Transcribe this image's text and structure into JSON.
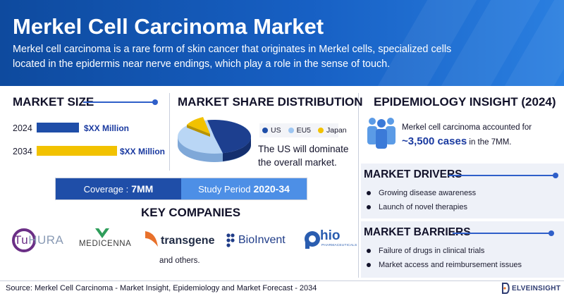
{
  "header": {
    "title": "Merkel Cell Carcinoma Market",
    "description": "Merkel cell carcinoma is a rare form of skin cancer that originates in Merkel cells, specialized cells located in the epidermis near nerve endings, which play a role in the sense of touch."
  },
  "market_size": {
    "title": "MARKET SIZE",
    "rows": [
      {
        "year": "2024",
        "value": "$XX Million",
        "color": "#1f4ea8"
      },
      {
        "year": "2034",
        "value": "$XX Million",
        "color": "#f2c200"
      }
    ]
  },
  "market_share": {
    "title": "MARKET SHARE DISTRIBUTION",
    "legend": [
      {
        "label": "US",
        "color": "#1f4ea8"
      },
      {
        "label": "EU5",
        "color": "#9ec6f2"
      },
      {
        "label": "Japan",
        "color": "#f2c200"
      }
    ],
    "text": "The US will dominate the overall market."
  },
  "coverage": {
    "coverage_label": "Coverage :",
    "coverage_value": "7MM",
    "period_label": "Study Period",
    "period_value": "2020-34"
  },
  "companies": {
    "title": "KEY COMPANIES",
    "logos": [
      "TuHURA",
      "MEDICENNA",
      "transgene",
      "BioInvent",
      "Phio"
    ],
    "phio_sub": "PHARMACEUTICALS",
    "others": "and others."
  },
  "epidemiology": {
    "title": "EPIDEMIOLOGY INSIGHT (2024)",
    "text_before": "Merkel cell carcinoma accounted for",
    "highlight": "~3,500 cases",
    "text_after": "in the 7MM."
  },
  "drivers": {
    "title": "MARKET DRIVERS",
    "items": [
      "Growing disease awareness",
      "Launch of novel therapies"
    ]
  },
  "barriers": {
    "title": "MARKET BARRIERS",
    "items": [
      "Failure of drugs in clinical trials",
      "Market access and reimbursement issues"
    ]
  },
  "footer": {
    "source": "Source: Merkel Cell Carcinoma - Market Insight, Epidemiology and Market Forecast - 2034",
    "brand": "ELVEINSIGHT"
  },
  "colors": {
    "header_blue": "#1760c4",
    "accent_blue": "#1f4ea8",
    "light_blue": "#4d8fe6",
    "yellow": "#f2c200"
  }
}
